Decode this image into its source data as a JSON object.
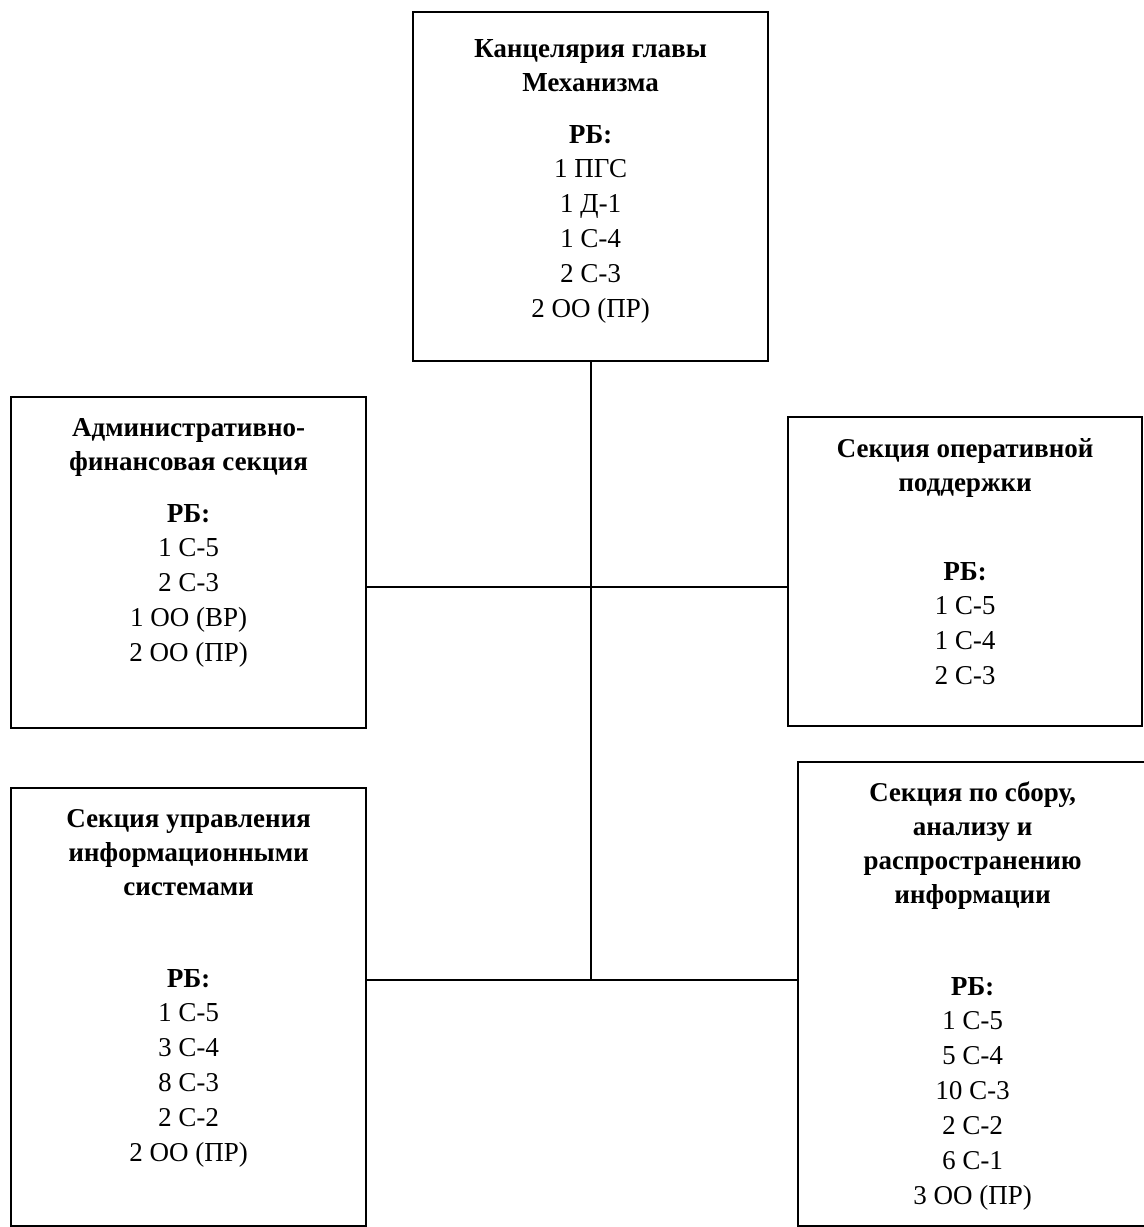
{
  "org_chart": {
    "head_office": {
      "title_lines": [
        "Канцелярия главы",
        "Механизма"
      ],
      "budget_label": "РБ:",
      "posts": [
        "1 ПГС",
        "1 Д-1",
        "1 С-4",
        "2 С-3",
        "2 ОО (ПР)"
      ]
    },
    "admin_finance_section": {
      "title_lines": [
        "Административно-",
        "финансовая секция"
      ],
      "budget_label": "РБ:",
      "posts": [
        "1 С-5",
        "2 С-3",
        "1 ОО (ВР)",
        "2 ОО (ПР)"
      ]
    },
    "operational_support_section": {
      "title_lines": [
        "Секция оперативной",
        "поддержки"
      ],
      "budget_label": "РБ:",
      "posts": [
        "1 С-5",
        "1 С-4",
        "2 С-3"
      ]
    },
    "info_systems_section": {
      "title_lines": [
        "Секция управления",
        "информационными",
        "системами"
      ],
      "budget_label": "РБ:",
      "posts": [
        "1 С-5",
        "3 С-4",
        "8 С-3",
        "2 С-2",
        "2 ОО (ПР)"
      ]
    },
    "info_collection_section": {
      "title_lines": [
        "Секция по сбору,",
        "анализу и",
        "распространению",
        "информации"
      ],
      "budget_label": "РБ:",
      "posts": [
        "1 С-5",
        "5 С-4",
        "10 С-3",
        "2 С-2",
        "6 С-1",
        "3 ОО (ПР)"
      ]
    }
  }
}
